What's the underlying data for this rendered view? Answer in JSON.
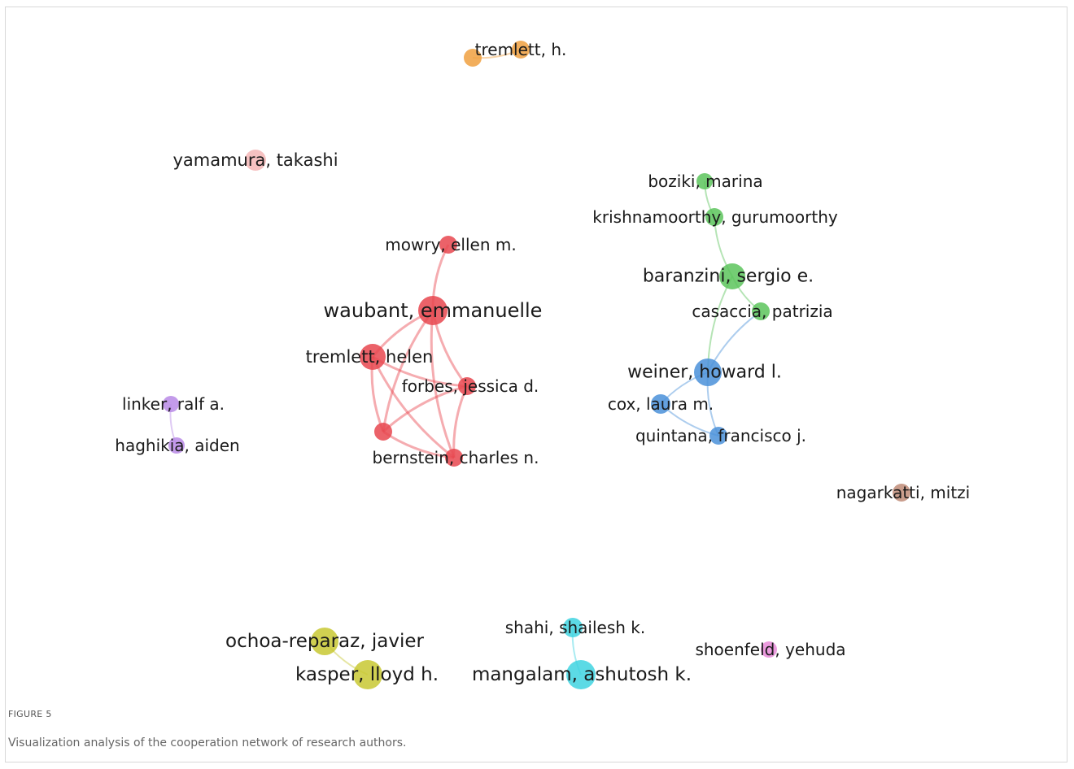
{
  "figure": {
    "label": "FIGURE 5",
    "caption": "Visualization analysis of the cooperation network of research authors."
  },
  "clusters": {
    "red": "#e8474f",
    "green": "#5cc45c",
    "blue": "#4a90d9",
    "purple": "#b98ae6",
    "yellow": "#c8c832",
    "cyan": "#3fd3e0",
    "orange": "#f0a040",
    "pink": "#f4b6b6",
    "brown": "#c08c78",
    "magenta": "#e88ad8"
  },
  "nodes": [
    {
      "id": "tremlett-h-1",
      "label": "",
      "cluster": "orange"
    },
    {
      "id": "tremlett-h-2",
      "label": "tremlett, h.",
      "cluster": "orange"
    },
    {
      "id": "yamamura",
      "label": "yamamura, takashi",
      "cluster": "pink"
    },
    {
      "id": "mowry",
      "label": "mowry, ellen m.",
      "cluster": "red"
    },
    {
      "id": "waubant",
      "label": "waubant, emmanuelle",
      "cluster": "red"
    },
    {
      "id": "tremlett-helen",
      "label": "tremlett, helen",
      "cluster": "red"
    },
    {
      "id": "forbes",
      "label": "forbes, jessica d.",
      "cluster": "red"
    },
    {
      "id": "red-unlabeled",
      "label": "",
      "cluster": "red"
    },
    {
      "id": "bernstein",
      "label": "bernstein, charles n.",
      "cluster": "red"
    },
    {
      "id": "boziki",
      "label": "boziki, marina",
      "cluster": "green"
    },
    {
      "id": "krishnamoorthy",
      "label": "krishnamoorthy, gurumoorthy",
      "cluster": "green"
    },
    {
      "id": "baranzini",
      "label": "baranzini, sergio e.",
      "cluster": "green"
    },
    {
      "id": "casaccia",
      "label": "casaccia, patrizia",
      "cluster": "green"
    },
    {
      "id": "weiner",
      "label": "weiner, howard l.",
      "cluster": "blue"
    },
    {
      "id": "cox",
      "label": "cox, laura m.",
      "cluster": "blue"
    },
    {
      "id": "quintana",
      "label": "quintana, francisco j.",
      "cluster": "blue"
    },
    {
      "id": "linker",
      "label": "linker, ralf a.",
      "cluster": "purple"
    },
    {
      "id": "haghikia",
      "label": "haghikia, aiden",
      "cluster": "purple"
    },
    {
      "id": "nagarkatti",
      "label": "nagarkatti, mitzi",
      "cluster": "brown"
    },
    {
      "id": "ochoa",
      "label": "ochoa-reparaz, javier",
      "cluster": "yellow"
    },
    {
      "id": "kasper",
      "label": "kasper, lloyd h.",
      "cluster": "yellow"
    },
    {
      "id": "shahi",
      "label": "shahi, shailesh k.",
      "cluster": "cyan"
    },
    {
      "id": "mangalam",
      "label": "mangalam, ashutosh k.",
      "cluster": "cyan"
    },
    {
      "id": "shoenfeld",
      "label": "shoenfeld, yehuda",
      "cluster": "magenta"
    }
  ],
  "links": [
    {
      "source": "mowry",
      "target": "waubant",
      "cluster": "red"
    },
    {
      "source": "waubant",
      "target": "tremlett-helen",
      "cluster": "red"
    },
    {
      "source": "waubant",
      "target": "forbes",
      "cluster": "red"
    },
    {
      "source": "waubant",
      "target": "red-unlabeled",
      "cluster": "red"
    },
    {
      "source": "waubant",
      "target": "bernstein",
      "cluster": "red"
    },
    {
      "source": "tremlett-helen",
      "target": "forbes",
      "cluster": "red"
    },
    {
      "source": "tremlett-helen",
      "target": "red-unlabeled",
      "cluster": "red"
    },
    {
      "source": "tremlett-helen",
      "target": "bernstein",
      "cluster": "red"
    },
    {
      "source": "forbes",
      "target": "red-unlabeled",
      "cluster": "red"
    },
    {
      "source": "forbes",
      "target": "bernstein",
      "cluster": "red"
    },
    {
      "source": "red-unlabeled",
      "target": "bernstein",
      "cluster": "red"
    },
    {
      "source": "boziki",
      "target": "krishnamoorthy",
      "cluster": "green"
    },
    {
      "source": "krishnamoorthy",
      "target": "baranzini",
      "cluster": "green"
    },
    {
      "source": "baranzini",
      "target": "casaccia",
      "cluster": "green"
    },
    {
      "source": "baranzini",
      "target": "weiner",
      "cluster": "green"
    },
    {
      "source": "casaccia",
      "target": "weiner",
      "cluster": "blue"
    },
    {
      "source": "weiner",
      "target": "cox",
      "cluster": "blue"
    },
    {
      "source": "weiner",
      "target": "quintana",
      "cluster": "blue"
    },
    {
      "source": "cox",
      "target": "quintana",
      "cluster": "blue"
    },
    {
      "source": "linker",
      "target": "haghikia",
      "cluster": "purple"
    },
    {
      "source": "ochoa",
      "target": "kasper",
      "cluster": "yellow"
    },
    {
      "source": "shahi",
      "target": "mangalam",
      "cluster": "cyan"
    },
    {
      "source": "tremlett-h-1",
      "target": "tremlett-h-2",
      "cluster": "orange"
    }
  ]
}
